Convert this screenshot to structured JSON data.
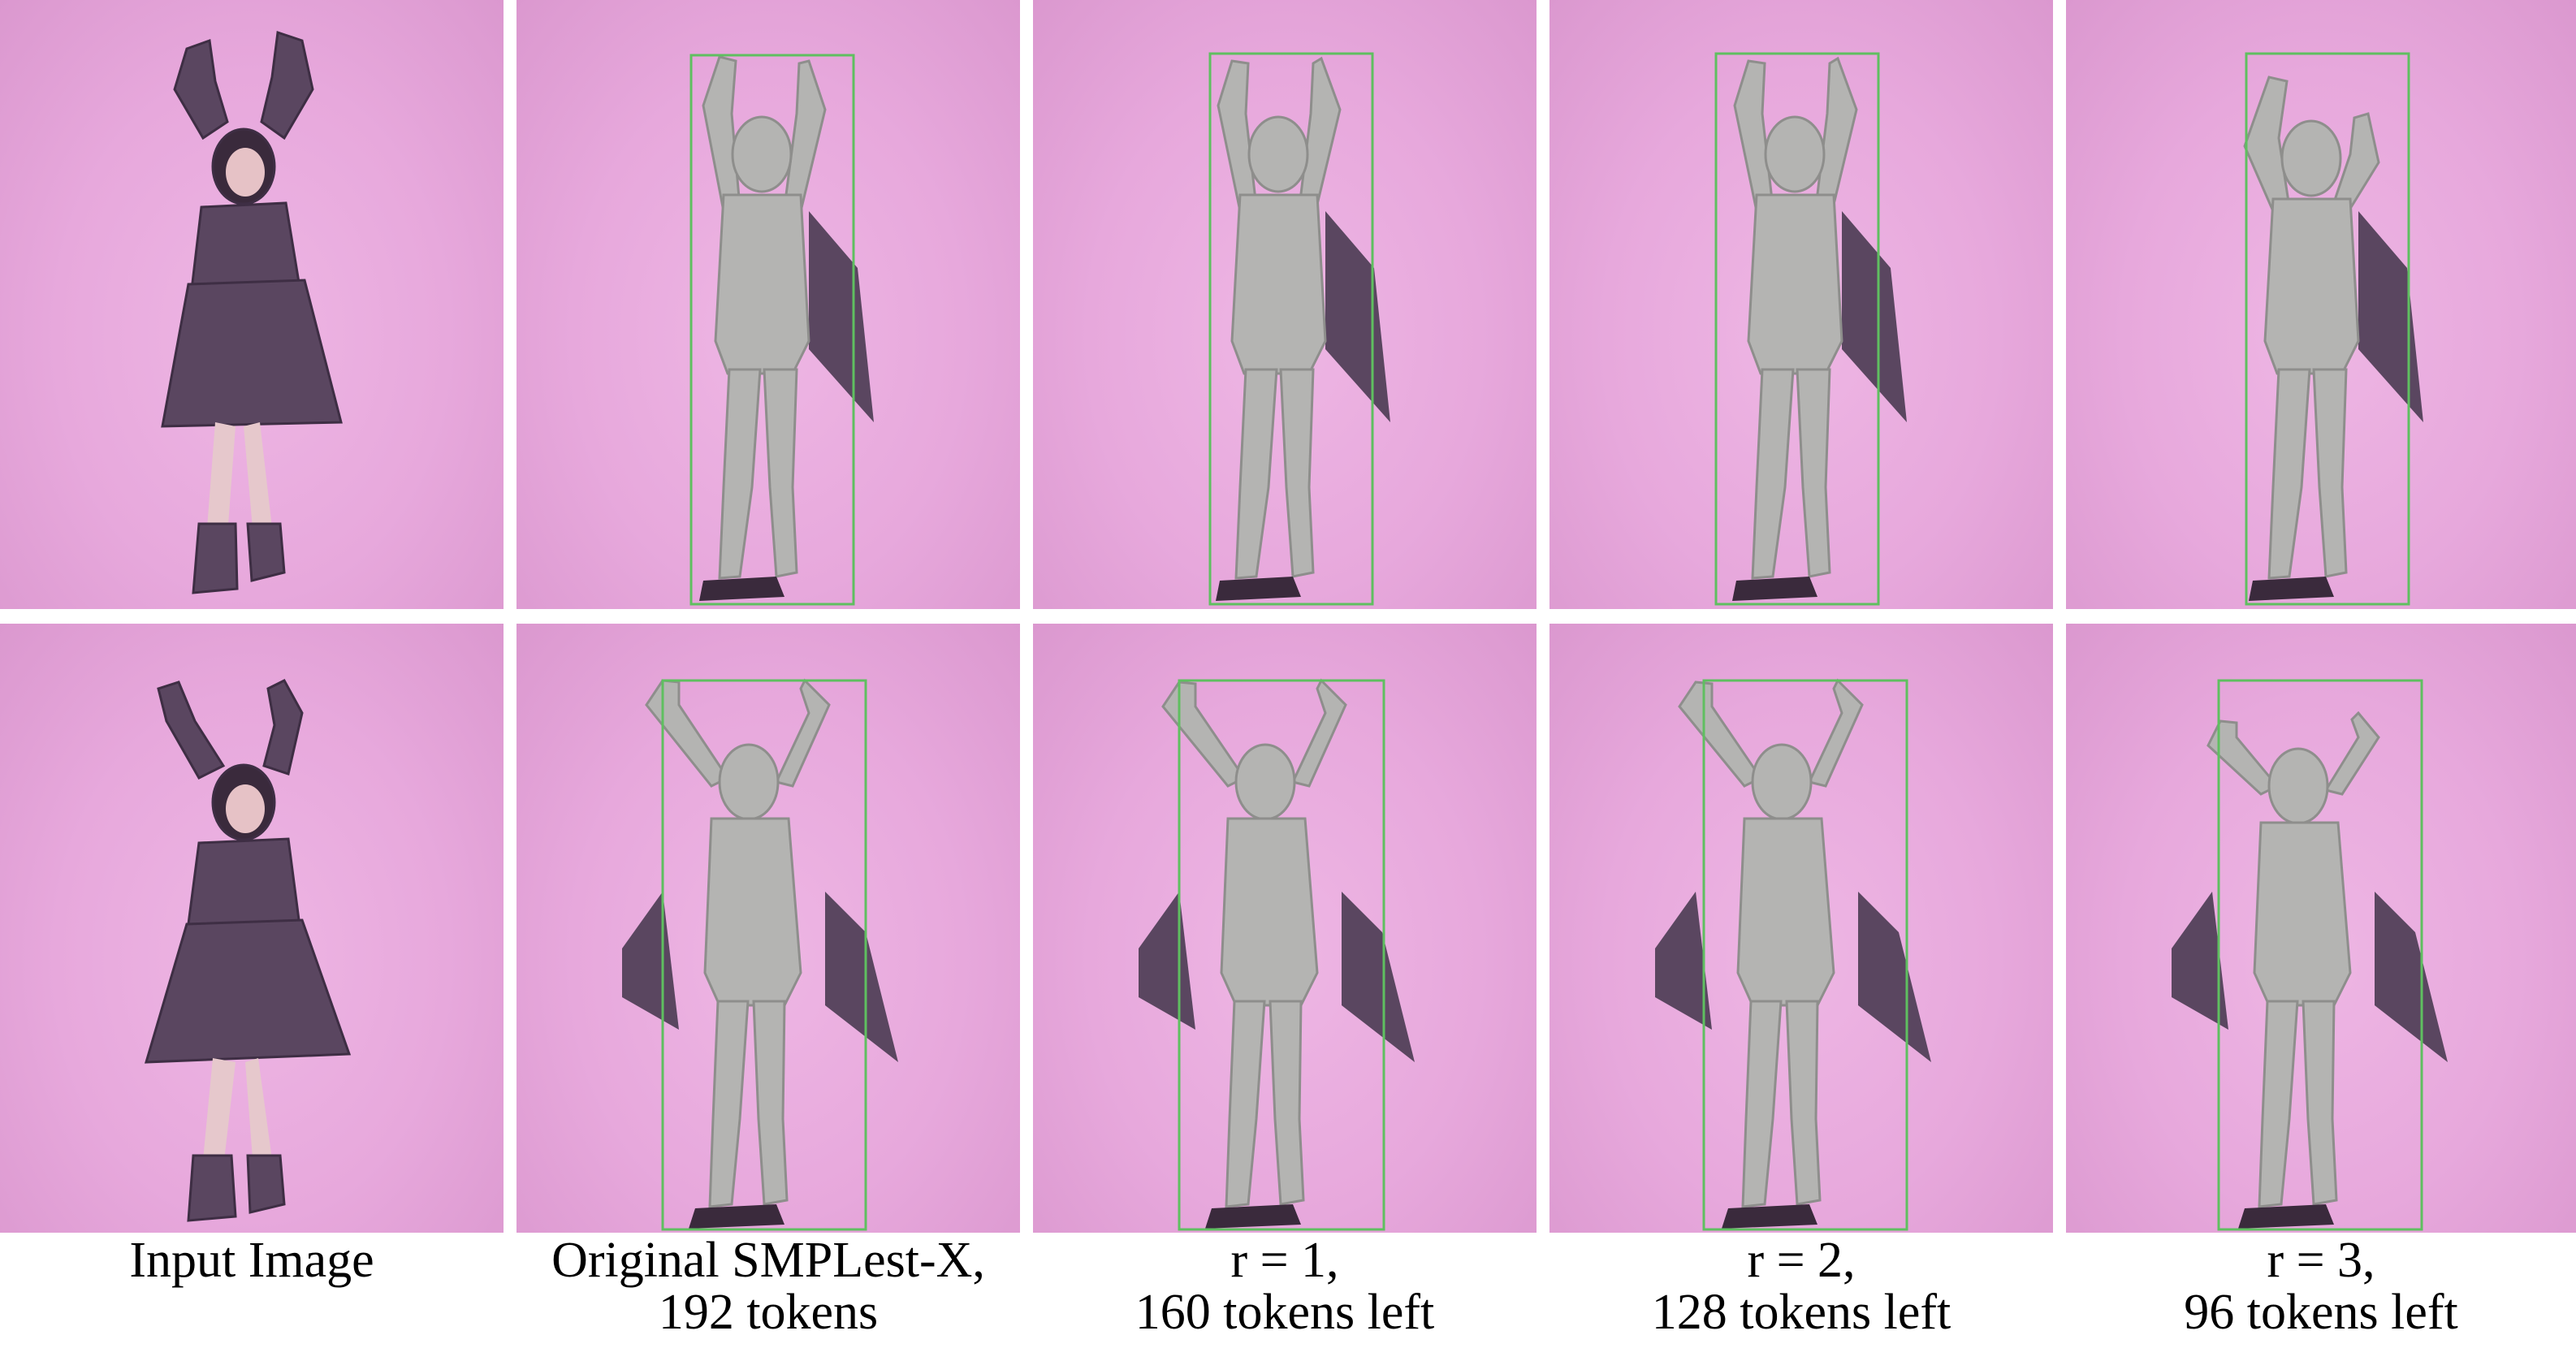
{
  "figure": {
    "background_color": "#e8aadd",
    "person_color": "#5a4660",
    "mesh_color": "#b4b4b2",
    "box_color": "#5fbf60",
    "rows": [
      {
        "name": "row-1",
        "pose": "arms-raised-standing"
      },
      {
        "name": "row-2",
        "pose": "arms-raised-skirt-flare"
      }
    ],
    "columns": [
      {
        "name": "input-image",
        "kind": "input",
        "caption_lines": [
          "Input Image"
        ]
      },
      {
        "name": "original-smplest-x",
        "kind": "mesh",
        "caption_lines": [
          "Original SMPLest-X,",
          "192 tokens"
        ]
      },
      {
        "name": "r-1",
        "kind": "mesh",
        "caption_lines": [
          "r = 1,",
          "160 tokens left"
        ]
      },
      {
        "name": "r-2",
        "kind": "mesh",
        "caption_lines": [
          "r = 2,",
          "128 tokens left"
        ]
      },
      {
        "name": "r-3",
        "kind": "mesh",
        "caption_lines": [
          "r = 3,",
          "96 tokens left"
        ]
      }
    ]
  }
}
